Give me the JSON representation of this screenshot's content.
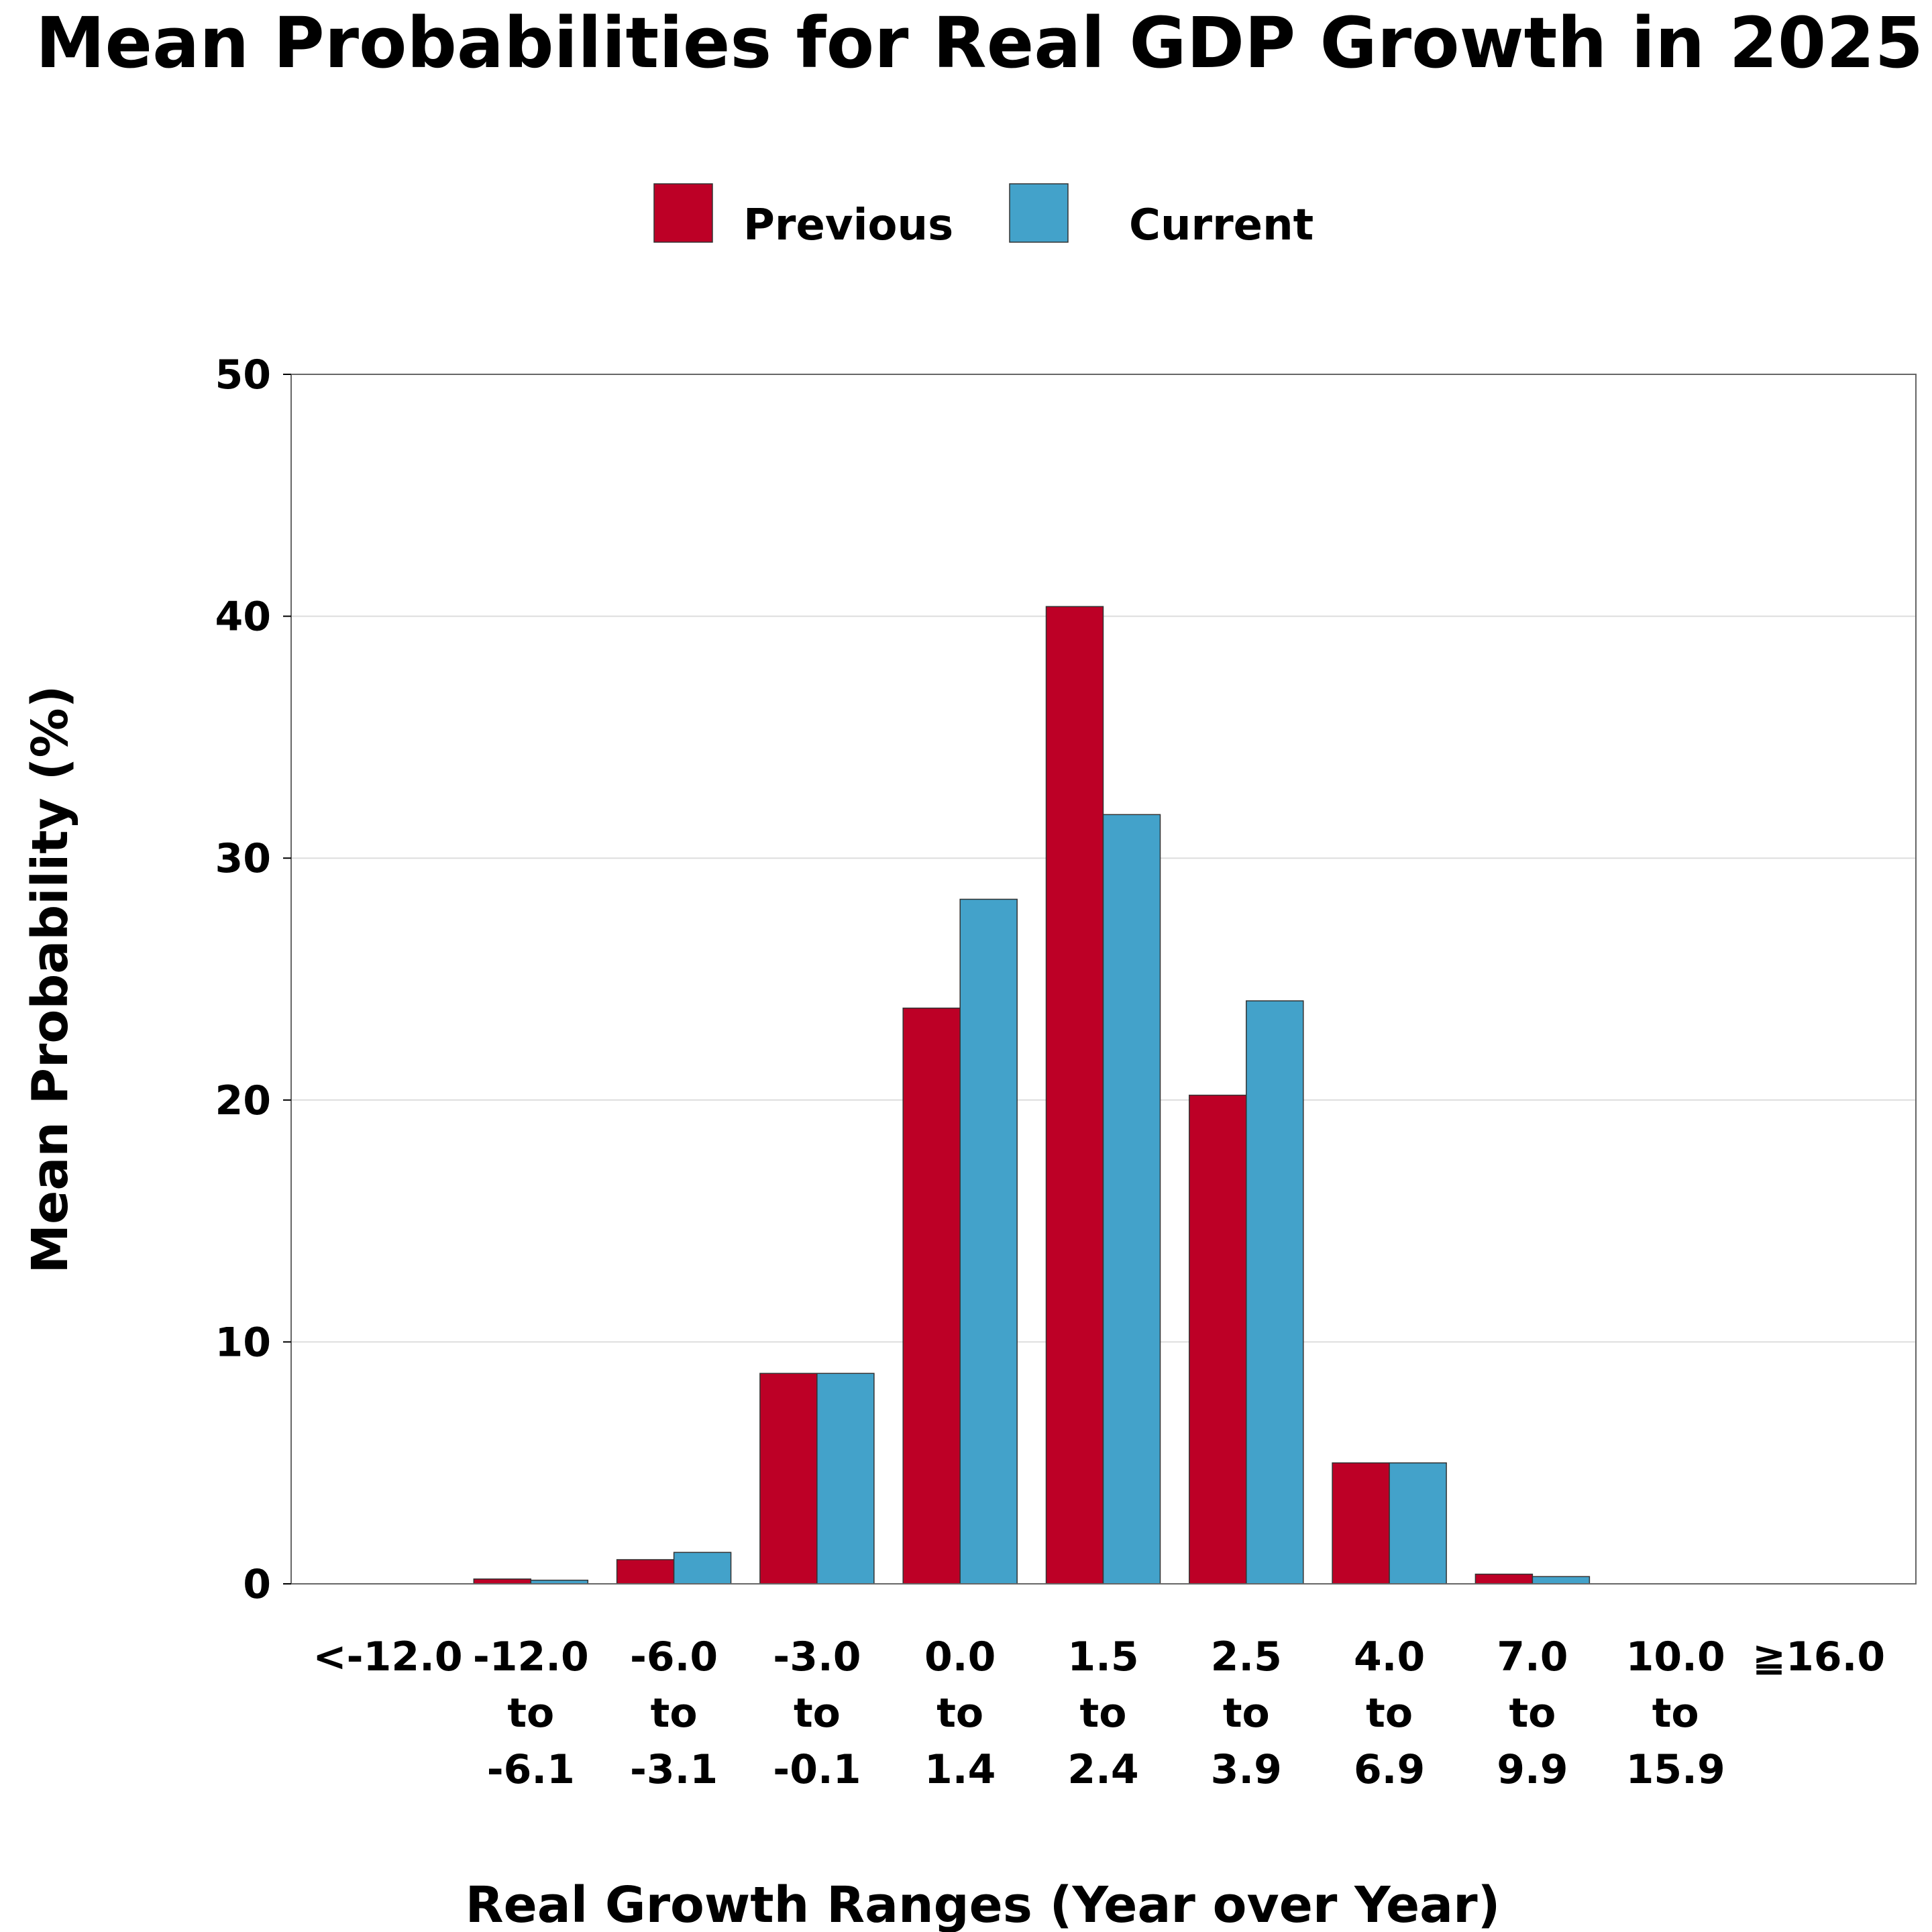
{
  "chart_data": {
    "type": "bar",
    "title": "Mean Probabilities for Real GDP Growth in 2025",
    "xlabel": "Real Growth Ranges (Year over Year)",
    "ylabel": "Mean Probability (%)",
    "ylim": [
      0,
      50
    ],
    "yticks": [
      "0",
      "10",
      "20",
      "30",
      "40",
      "50"
    ],
    "grid": true,
    "legend_position": "top-center",
    "categories": [
      [
        "<-12.0"
      ],
      [
        "-12.0",
        "to",
        "-6.1"
      ],
      [
        "-6.0",
        "to",
        "-3.1"
      ],
      [
        "-3.0",
        "to",
        "-0.1"
      ],
      [
        "0.0",
        "to",
        "1.4"
      ],
      [
        "1.5",
        "to",
        "2.4"
      ],
      [
        "2.5",
        "to",
        "3.9"
      ],
      [
        "4.0",
        "to",
        "6.9"
      ],
      [
        "7.0",
        "to",
        "9.9"
      ],
      [
        "10.0",
        "to",
        "15.9"
      ],
      [
        "≧16.0"
      ]
    ],
    "series": [
      {
        "name": "Previous",
        "color": "#bd0026",
        "values": [
          0.0,
          0.2,
          1.0,
          8.7,
          23.8,
          40.4,
          20.2,
          5.0,
          0.4,
          0.0,
          0.0
        ]
      },
      {
        "name": "Current",
        "color": "#43a2ca",
        "values": [
          0.0,
          0.15,
          1.3,
          8.7,
          28.3,
          31.8,
          24.1,
          5.0,
          0.3,
          0.0,
          0.0
        ]
      }
    ]
  }
}
